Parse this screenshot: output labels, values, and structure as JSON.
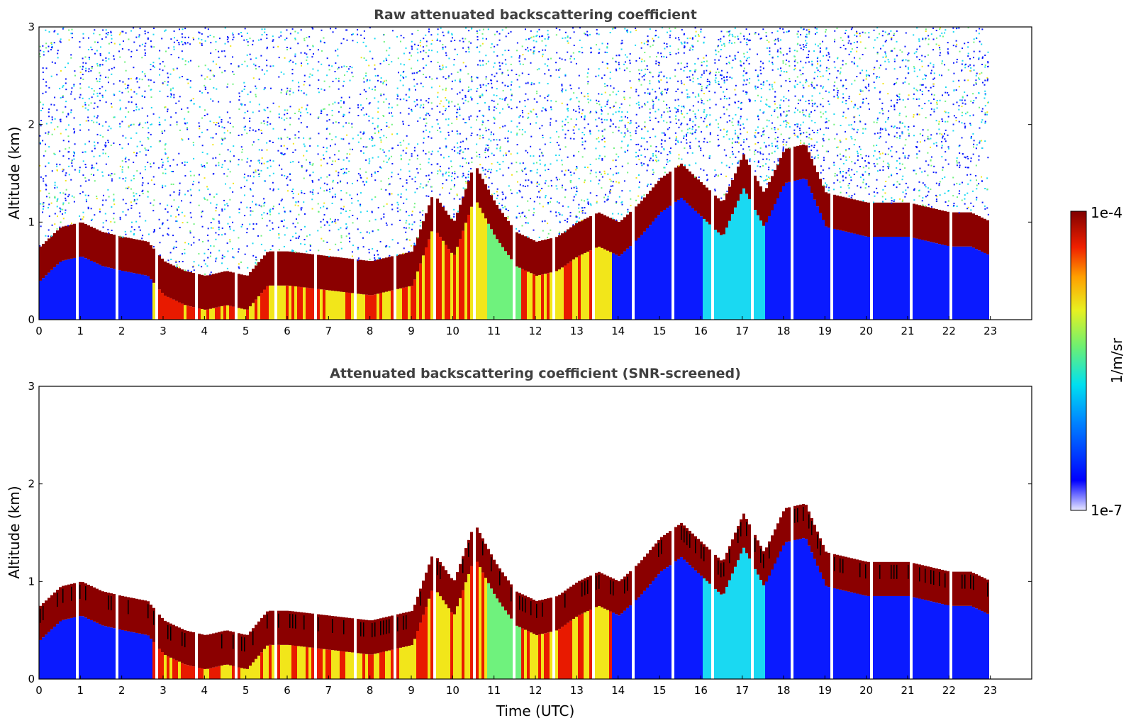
{
  "chart_data": [
    {
      "type": "heatmap",
      "title": "Raw attenuated backscattering coefficient",
      "xlabel": "",
      "ylabel": "Altitude (km)",
      "xlim": [
        0,
        24
      ],
      "ylim": [
        0,
        3
      ],
      "x_ticks": [
        "0",
        "1",
        "2",
        "3",
        "4",
        "5",
        "6",
        "7",
        "8",
        "9",
        "10",
        "11",
        "12",
        "13",
        "14",
        "15",
        "16",
        "17",
        "18",
        "19",
        "20",
        "21",
        "22",
        "23"
      ],
      "y_ticks": [
        "0",
        "1",
        "2",
        "3"
      ],
      "data_end_hour": 23,
      "screened": false,
      "layer_top_km": [
        [
          0,
          0.75
        ],
        [
          0.5,
          0.95
        ],
        [
          1,
          1.0
        ],
        [
          1.5,
          0.9
        ],
        [
          2,
          0.85
        ],
        [
          2.6,
          0.8
        ],
        [
          3,
          0.6
        ],
        [
          3.5,
          0.5
        ],
        [
          4,
          0.45
        ],
        [
          4.5,
          0.5
        ],
        [
          5,
          0.45
        ],
        [
          5.5,
          0.7
        ],
        [
          6,
          0.7
        ],
        [
          7,
          0.65
        ],
        [
          8,
          0.6
        ],
        [
          9,
          0.7
        ],
        [
          9.5,
          1.3
        ],
        [
          10,
          1.0
        ],
        [
          10.5,
          1.6
        ],
        [
          11,
          1.2
        ],
        [
          11.5,
          0.9
        ],
        [
          12,
          0.8
        ],
        [
          12.5,
          0.85
        ],
        [
          13,
          1.0
        ],
        [
          13.5,
          1.1
        ],
        [
          14,
          1.0
        ],
        [
          14.5,
          1.2
        ],
        [
          15,
          1.45
        ],
        [
          15.5,
          1.6
        ],
        [
          16,
          1.4
        ],
        [
          16.5,
          1.2
        ],
        [
          17,
          1.7
        ],
        [
          17.5,
          1.3
        ],
        [
          18,
          1.75
        ],
        [
          18.5,
          1.8
        ],
        [
          19,
          1.3
        ],
        [
          19.5,
          1.25
        ],
        [
          20,
          1.2
        ],
        [
          20.5,
          1.2
        ],
        [
          21,
          1.2
        ],
        [
          21.5,
          1.15
        ],
        [
          22,
          1.1
        ],
        [
          22.5,
          1.1
        ],
        [
          23,
          1.0
        ]
      ]
    },
    {
      "type": "heatmap",
      "title": "Attenuated backscattering coefficient (SNR-screened)",
      "xlabel": "Time (UTC)",
      "ylabel": "Altitude (km)",
      "xlim": [
        0,
        24
      ],
      "ylim": [
        0,
        3
      ],
      "x_ticks": [
        "0",
        "1",
        "2",
        "3",
        "4",
        "5",
        "6",
        "7",
        "8",
        "9",
        "10",
        "11",
        "12",
        "13",
        "14",
        "15",
        "16",
        "17",
        "18",
        "19",
        "20",
        "21",
        "22",
        "23"
      ],
      "y_ticks": [
        "0",
        "1",
        "2",
        "3"
      ],
      "data_end_hour": 23,
      "screened": true
    }
  ],
  "colorbar": {
    "label": "1/m/sr",
    "max_label": "1e-4",
    "min_label": "1e-7",
    "colormap": "jet",
    "scale": "log"
  },
  "colors": {
    "dark_red": "#8b0000",
    "red": "#e81a00",
    "yellow": "#f2e61a",
    "green": "#6ff27d",
    "cyan": "#1ad9f2",
    "blue": "#0a1aff",
    "frame": "#000000",
    "title": "#404040"
  }
}
